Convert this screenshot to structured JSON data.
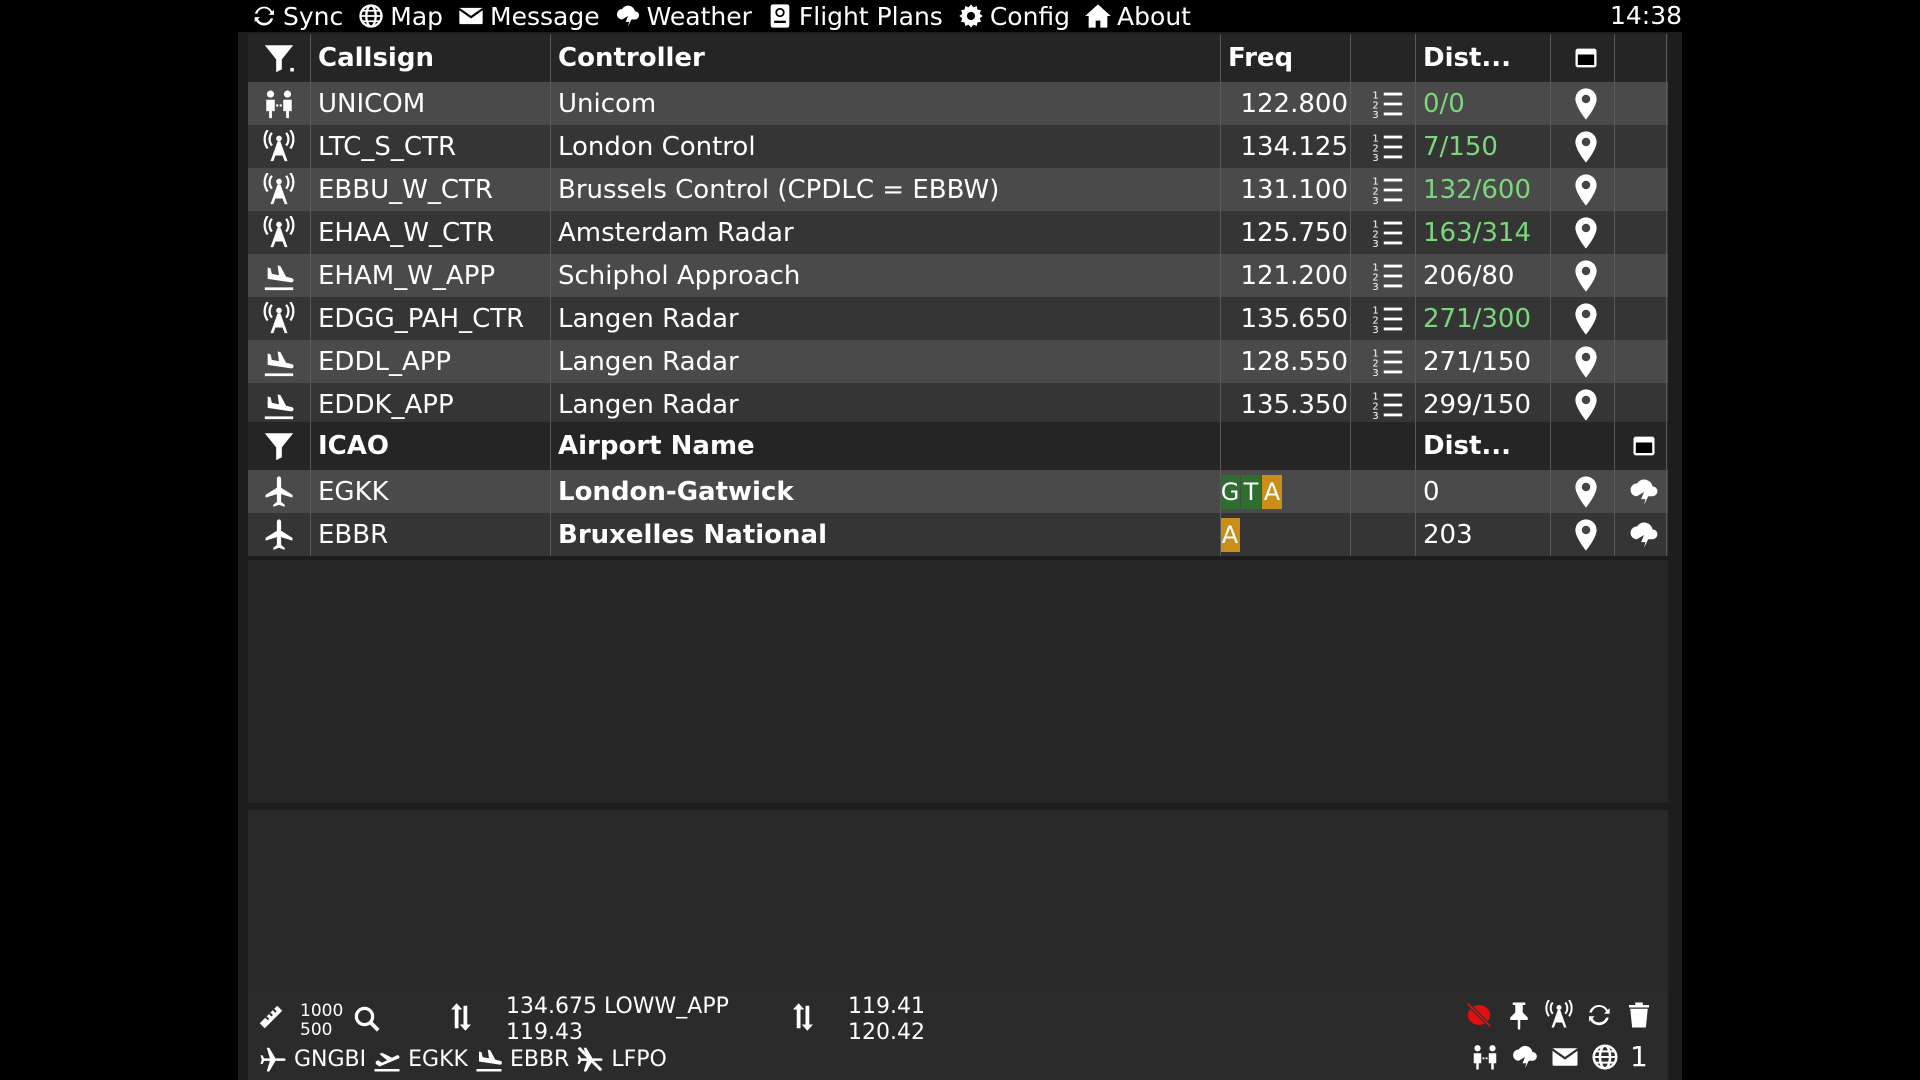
{
  "menu": {
    "items": [
      {
        "label": "Sync",
        "icon": "sync-icon"
      },
      {
        "label": "Map",
        "icon": "globe-icon"
      },
      {
        "label": "Message",
        "icon": "envelope-icon"
      },
      {
        "label": "Weather",
        "icon": "weather-icon"
      },
      {
        "label": "Flight Plans",
        "icon": "flight-plan-icon"
      },
      {
        "label": "Config",
        "icon": "gear-icon"
      },
      {
        "label": "About",
        "icon": "home-icon"
      }
    ],
    "clock": "14:38"
  },
  "controllers": {
    "headers": {
      "callsign": "Callsign",
      "controller": "Controller",
      "freq": "Freq",
      "dist": "Dist..."
    },
    "rows": [
      {
        "icon": "unicom-icon",
        "callsign": "UNICOM",
        "controller": "Unicom",
        "freq": "122.800",
        "dist": "0/0",
        "in_range": true
      },
      {
        "icon": "antenna-icon",
        "callsign": "LTC_S_CTR",
        "controller": "London Control",
        "freq": "134.125",
        "dist": "7/150",
        "in_range": true
      },
      {
        "icon": "antenna-icon",
        "callsign": "EBBU_W_CTR",
        "controller": "Brussels Control (CPDLC = EBBW)",
        "freq": "131.100",
        "dist": "132/600",
        "in_range": true
      },
      {
        "icon": "antenna-icon",
        "callsign": "EHAA_W_CTR",
        "controller": "Amsterdam Radar",
        "freq": "125.750",
        "dist": "163/314",
        "in_range": true
      },
      {
        "icon": "approach-icon",
        "callsign": "EHAM_W_APP",
        "controller": "Schiphol Approach",
        "freq": "121.200",
        "dist": "206/80",
        "in_range": false
      },
      {
        "icon": "antenna-icon",
        "callsign": "EDGG_PAH_CTR",
        "controller": "Langen Radar",
        "freq": "135.650",
        "dist": "271/300",
        "in_range": true
      },
      {
        "icon": "approach-icon",
        "callsign": "EDDL_APP",
        "controller": "Langen Radar",
        "freq": "128.550",
        "dist": "271/150",
        "in_range": false
      },
      {
        "icon": "approach-icon",
        "callsign": "EDDK_APP",
        "controller": "Langen Radar",
        "freq": "135.350",
        "dist": "299/150",
        "in_range": false
      }
    ]
  },
  "airports": {
    "headers": {
      "icao": "ICAO",
      "name": "Airport Name",
      "dist": "Dist..."
    },
    "rows": [
      {
        "icao": "EGKK",
        "name": "London-Gatwick",
        "badges": [
          "G",
          "T",
          "A"
        ],
        "dist": "0"
      },
      {
        "icao": "EBBR",
        "name": "Bruxelles National",
        "badges": [
          "A"
        ],
        "dist": "203"
      }
    ]
  },
  "bottom": {
    "range_top": "1000",
    "range_bottom": "500",
    "com1_active": "134.675 LOWW_APP",
    "com1_standby": "119.43",
    "com2_active": "119.41",
    "com2_standby": "120.42",
    "route": {
      "aircraft": "GNGBI",
      "departure": "EGKK",
      "arrival": "EBBR",
      "alternate": "LFPO"
    },
    "counter": "1"
  },
  "colors": {
    "accent_green": "#7cd67c",
    "badge_green": "#2e6e2e",
    "badge_amber": "#c98f1a",
    "row_light": "#4a4a4a",
    "row_dark": "#353535",
    "alert_red": "#e01010"
  }
}
